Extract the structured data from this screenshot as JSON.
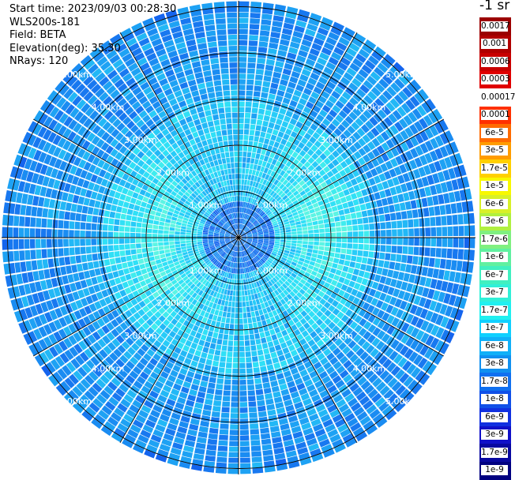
{
  "info": {
    "start_time": "Start time: 2023/09/03 00:28:30",
    "instrument": "WLS200s-181",
    "field": "Field: BETA",
    "elevation": "Elevation(deg): 35.30",
    "nrays": "NRays: 120"
  },
  "units_label": "-1 sr",
  "rays": 120,
  "range_rings": [
    {
      "label": "1.00km",
      "km": 1
    },
    {
      "label": "2.00km",
      "km": 2
    },
    {
      "label": "3.00km",
      "km": 3
    },
    {
      "label": "4.00km",
      "km": 4
    },
    {
      "label": "5.00km",
      "km": 5
    }
  ],
  "colorbar": [
    {
      "label": "0.0017",
      "color": "#9b0000"
    },
    {
      "label": "0.001",
      "color": "#b00000"
    },
    {
      "label": "0.0006",
      "color": "#c80000"
    },
    {
      "label": "0.0003",
      "color": "#e00000"
    },
    {
      "label": "0.00017",
      "color": "#ffffff"
    },
    {
      "label": "0.0001",
      "color": "#ff3000"
    },
    {
      "label": "6e-5",
      "color": "#ff6a00"
    },
    {
      "label": "3e-5",
      "color": "#ff9c00"
    },
    {
      "label": "1.7e-5",
      "color": "#ffd000"
    },
    {
      "label": "1e-5",
      "color": "#f8f800"
    },
    {
      "label": "6e-6",
      "color": "#d8f028"
    },
    {
      "label": "3e-6",
      "color": "#b0f040"
    },
    {
      "label": "1.7e-6",
      "color": "#80f080"
    },
    {
      "label": "1e-6",
      "color": "#60f0a0"
    },
    {
      "label": "6e-7",
      "color": "#40f0c0"
    },
    {
      "label": "3e-7",
      "color": "#30f0d8"
    },
    {
      "label": "1.7e-7",
      "color": "#20f0f0"
    },
    {
      "label": "1e-7",
      "color": "#10d0ff"
    },
    {
      "label": "6e-8",
      "color": "#10b0f8"
    },
    {
      "label": "3e-8",
      "color": "#1090f0"
    },
    {
      "label": "1.7e-8",
      "color": "#1070f0"
    },
    {
      "label": "1e-8",
      "color": "#1050e8"
    },
    {
      "label": "6e-9",
      "color": "#1030e0"
    },
    {
      "label": "3e-9",
      "color": "#1010c8"
    },
    {
      "label": "1.7e-9",
      "color": "#0808a0"
    },
    {
      "label": "1e-9",
      "color": "#000080"
    }
  ]
}
